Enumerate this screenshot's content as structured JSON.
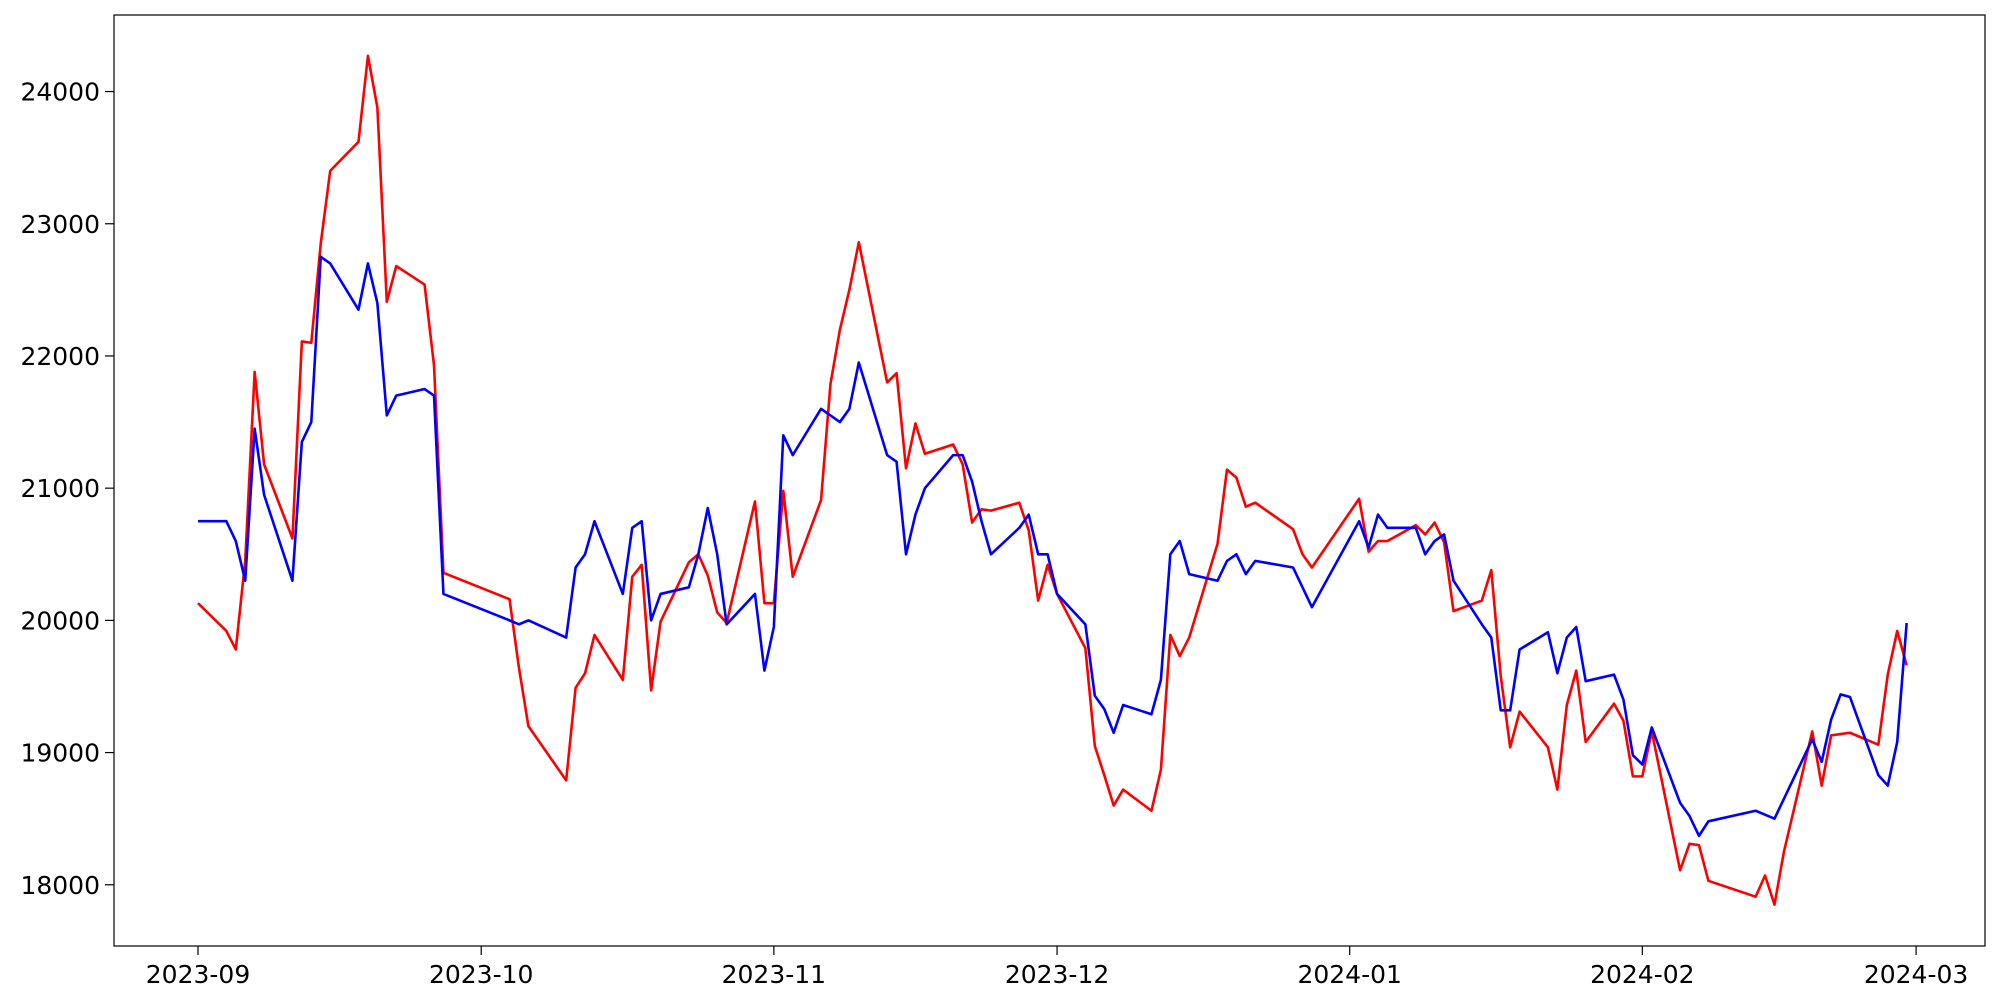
{
  "chart_data": {
    "type": "line",
    "x": [
      0,
      3,
      4,
      5,
      6,
      7,
      10,
      11,
      12,
      13,
      14,
      17,
      18,
      19,
      20,
      21,
      24,
      25,
      26,
      33,
      34,
      35,
      39,
      40,
      41,
      42,
      45,
      46,
      47,
      48,
      49,
      52,
      53,
      54,
      55,
      56,
      59,
      60,
      61,
      62,
      63,
      66,
      67,
      68,
      69,
      70,
      73,
      74,
      75,
      76,
      77,
      80,
      81,
      82,
      83,
      84,
      87,
      88,
      89,
      90,
      91,
      94,
      95,
      96,
      97,
      98,
      101,
      102,
      103,
      104,
      105,
      108,
      109,
      110,
      111,
      112,
      116,
      117,
      118,
      123,
      124,
      125,
      126,
      129,
      130,
      131,
      132,
      133,
      136,
      137,
      138,
      139,
      140,
      143,
      144,
      145,
      146,
      147,
      150,
      151,
      152,
      153,
      154,
      157,
      158,
      159,
      160,
      165,
      166,
      167,
      168,
      171,
      172,
      173,
      174,
      175,
      178,
      179,
      180,
      181
    ],
    "series": [
      {
        "color": "red",
        "values": [
          20130,
          19920,
          19780,
          20450,
          21880,
          21180,
          20620,
          22110,
          22100,
          22850,
          23400,
          23620,
          24270,
          23880,
          22410,
          22680,
          22540,
          21930,
          20360,
          20160,
          19640,
          19200,
          18790,
          19490,
          19600,
          19890,
          19550,
          20330,
          20420,
          19470,
          19990,
          20440,
          20500,
          20340,
          20060,
          19980,
          20900,
          20130,
          20130,
          20980,
          20330,
          20910,
          21790,
          22200,
          22500,
          22860,
          21800,
          21870,
          21150,
          21490,
          21260,
          21330,
          21180,
          20740,
          20840,
          20830,
          20890,
          20680,
          20150,
          20420,
          20200,
          19790,
          19050,
          18830,
          18600,
          18720,
          18560,
          18870,
          19890,
          19730,
          19870,
          20580,
          21140,
          21080,
          20860,
          20890,
          20690,
          20500,
          20400,
          20920,
          20520,
          20600,
          20600,
          20720,
          20650,
          20740,
          20590,
          20070,
          20150,
          20380,
          19580,
          19040,
          19310,
          19040,
          18720,
          19360,
          19620,
          19080,
          19370,
          19240,
          18820,
          18820,
          19160,
          18110,
          18310,
          18300,
          18030,
          17910,
          18070,
          17850,
          18250,
          19160,
          18750,
          19130,
          19140,
          19150,
          19060,
          19590,
          19920,
          19660
        ]
      },
      {
        "color": "blue",
        "values": [
          20750,
          20750,
          20600,
          20300,
          21450,
          20950,
          20300,
          21350,
          21500,
          22750,
          22700,
          22350,
          22700,
          22400,
          21550,
          21700,
          21750,
          21700,
          20200,
          20000,
          19970,
          20000,
          19870,
          20400,
          20500,
          20750,
          20200,
          20700,
          20750,
          20000,
          20200,
          20250,
          20500,
          20850,
          20500,
          19970,
          20200,
          19620,
          19950,
          21400,
          21250,
          21600,
          21550,
          21500,
          21600,
          21950,
          21250,
          21200,
          20500,
          20800,
          21000,
          21250,
          21250,
          21050,
          20750,
          20500,
          20700,
          20800,
          20500,
          20500,
          20200,
          19970,
          19430,
          19330,
          19150,
          19360,
          19290,
          19550,
          20500,
          20600,
          20350,
          20300,
          20450,
          20500,
          20350,
          20450,
          20400,
          20250,
          20100,
          20750,
          20550,
          20800,
          20700,
          20700,
          20500,
          20600,
          20650,
          20300,
          19970,
          19870,
          19320,
          19320,
          19780,
          19910,
          19600,
          19870,
          19950,
          19540,
          19590,
          19400,
          18980,
          18910,
          19190,
          18620,
          18520,
          18370,
          18480,
          18560,
          18530,
          18500,
          18650,
          19100,
          18930,
          19250,
          19440,
          19420,
          18830,
          18750,
          19080,
          19980
        ]
      }
    ],
    "xlim": [
      -8.9,
      189.3
    ],
    "xticks": [
      {
        "value": 0,
        "label": "2023-09"
      },
      {
        "value": 30,
        "label": "2023-10"
      },
      {
        "value": 61,
        "label": "2023-11"
      },
      {
        "value": 91,
        "label": "2023-12"
      },
      {
        "value": 122,
        "label": "2024-01"
      },
      {
        "value": 153,
        "label": "2024-02"
      },
      {
        "value": 182,
        "label": "2024-03"
      }
    ],
    "ylim": [
      17537,
      24579
    ],
    "yticks": [
      18000,
      19000,
      20000,
      21000,
      22000,
      23000,
      24000
    ],
    "grid": false
  }
}
